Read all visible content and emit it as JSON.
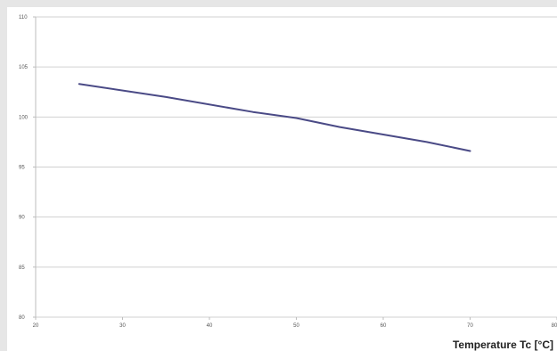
{
  "chart_data": {
    "type": "line",
    "title": "",
    "xlabel": "Temperature Tc [°C]",
    "ylabel": "",
    "x": [
      25,
      35,
      45,
      50,
      55,
      65,
      70
    ],
    "series": [
      {
        "values": [
          103.3,
          102.0,
          100.5,
          99.9,
          99.0,
          97.5,
          96.6
        ],
        "color": "#4a4a86"
      }
    ],
    "xlim": [
      20,
      80
    ],
    "ylim": [
      80,
      110
    ],
    "xticks": [
      20,
      30,
      40,
      50,
      60,
      70,
      80
    ],
    "yticks": [
      80,
      85,
      90,
      95,
      100,
      105,
      110
    ],
    "grid": true,
    "legend": "none"
  },
  "colors": {
    "background": "#e6e6e6",
    "plot_background": "#ffffff",
    "gridline": "#d0d0d0",
    "axis": "#bdbdbd",
    "series_line": "#4a4a86"
  }
}
